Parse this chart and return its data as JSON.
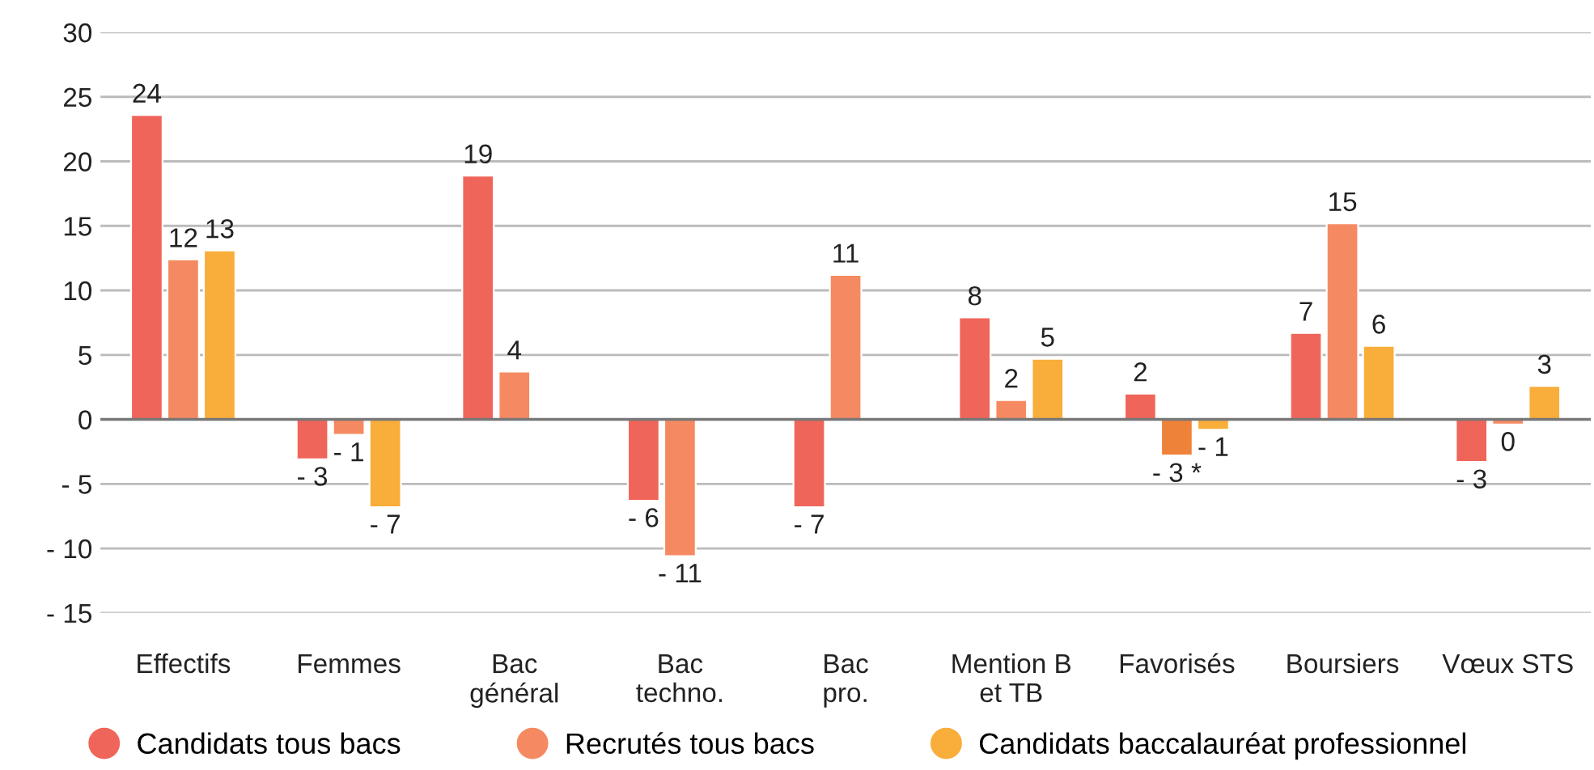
{
  "chart_data": {
    "type": "bar",
    "categories": [
      "Effectifs",
      "Femmes",
      "Bac\ngénéral",
      "Bac\ntechno.",
      "Bac\npro.",
      "Mention B\net TB",
      "Favorisés",
      "Boursiers",
      "Vœux STS"
    ],
    "series": [
      {
        "name": "Candidats tous bacs",
        "color": "#f0655a",
        "values": [
          23.6,
          -3.1,
          18.9,
          -6.3,
          -6.8,
          7.9,
          2.0,
          6.7,
          -3.3
        ],
        "value_labels": [
          "24",
          "- 3",
          "19",
          "- 6",
          "- 7",
          "8",
          "2",
          "7",
          "- 3"
        ]
      },
      {
        "name": "Recrutés tous bacs",
        "color": "#f58a62",
        "colors": [
          "#f58a62",
          "#f58a62",
          "#f58a62",
          "#f58a62",
          "#f58a62",
          "#f58a62",
          "#ef8239",
          "#f58a62",
          "#f58a62"
        ],
        "values": [
          12.4,
          -1.2,
          3.7,
          -10.6,
          11.2,
          1.5,
          -2.8,
          15.2,
          -0.4
        ],
        "value_labels": [
          "12",
          "- 1",
          "4",
          "- 11",
          "11",
          "2",
          "- 3 *",
          "15",
          "0"
        ]
      },
      {
        "name": "Candidats baccalauréat professionnel",
        "color": "#f9ad3a",
        "values": [
          13.1,
          -6.8,
          null,
          null,
          null,
          4.7,
          -0.8,
          5.7,
          2.6
        ],
        "value_labels": [
          "13",
          "- 7",
          null,
          null,
          null,
          "5",
          "- 1",
          "6",
          "3"
        ]
      }
    ],
    "ylim": [
      -15,
      30
    ],
    "yticks": [
      {
        "value": -15,
        "label": "- 15"
      },
      {
        "value": -10,
        "label": "- 10"
      },
      {
        "value": -5,
        "label": "- 5"
      },
      0,
      5,
      10,
      15,
      20,
      25,
      30
    ],
    "grid": "y",
    "legend": "bottom",
    "marker": "circle"
  }
}
